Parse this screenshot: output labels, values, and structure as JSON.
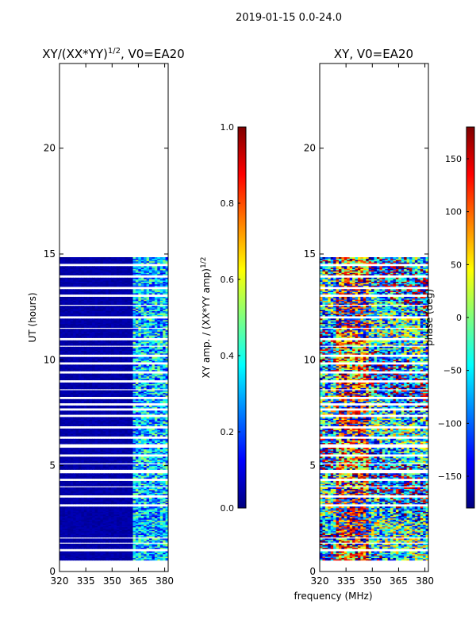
{
  "figure": {
    "suptitle": "2019-01-15 0.0-24.0",
    "shared_xlabel": "frequency (MHz)"
  },
  "colors": {
    "jet_stops": [
      "#00007f",
      "#0000ff",
      "#007fff",
      "#00ffff",
      "#7fff7f",
      "#ffff00",
      "#ff7f00",
      "#ff0000",
      "#7f0000"
    ],
    "background": "#ffffff",
    "axes": "#000000"
  },
  "chart_data": [
    {
      "type": "heatmap",
      "title_base": "XY/(XX*YY)",
      "title_exponent": "1/2",
      "title_suffix": ", V0=EA20",
      "xlabel": "",
      "ylabel": "UT (hours)",
      "xlim": [
        320,
        382
      ],
      "ylim": [
        0,
        24
      ],
      "xticks": [
        320,
        335,
        350,
        365,
        380
      ],
      "yticks": [
        0,
        5,
        10,
        15,
        20
      ],
      "data_y_range": [
        0.35,
        14.85
      ],
      "colorbar": {
        "label_base": "XY amp. / (XX*YY amp)",
        "label_exponent": "1/2",
        "range": [
          0.0,
          1.0
        ],
        "ticks": [
          "0.0",
          "0.2",
          "0.4",
          "0.6",
          "0.8",
          "1.0"
        ],
        "tick_values": [
          0.0,
          0.2,
          0.4,
          0.6,
          0.8,
          1.0
        ]
      },
      "description": "low amplitude (~0.0-0.05) for 320-361 MHz; higher (0.1-0.5) for 362-380 MHz"
    },
    {
      "type": "heatmap",
      "title_base": "XY, V0=EA20",
      "title_exponent": "",
      "title_suffix": "",
      "xlabel": "frequency (MHz)",
      "ylabel": "",
      "xlim": [
        320,
        382
      ],
      "ylim": [
        0,
        24
      ],
      "xticks": [
        320,
        335,
        350,
        365,
        380
      ],
      "yticks": [
        0,
        5,
        10,
        15,
        20
      ],
      "data_y_range": [
        0.35,
        14.85
      ],
      "colorbar": {
        "label_base": "phase (deg)",
        "label_exponent": "",
        "range": [
          -180,
          180
        ],
        "ticks": [
          "−150",
          "−100",
          "−50",
          "0",
          "50",
          "100",
          "150"
        ],
        "tick_values": [
          -150,
          -100,
          -50,
          0,
          50,
          100,
          150
        ]
      },
      "description": "phase wraps; red/orange band near 330-345 MHz, mixed blue/cyan elsewhere"
    }
  ]
}
